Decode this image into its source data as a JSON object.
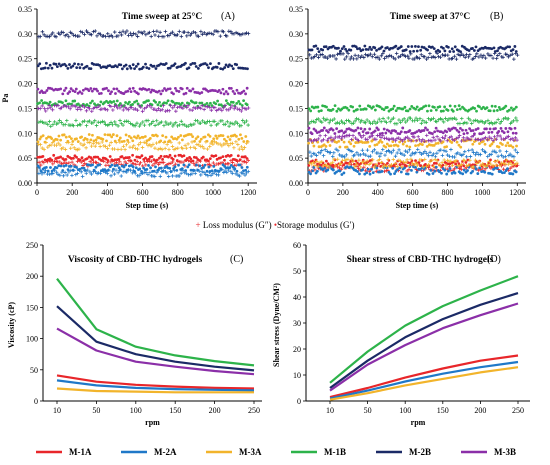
{
  "chart_data": [
    {
      "type": "scatter",
      "panel": "(A)",
      "title": "Time sweep at 25°C",
      "xlabel": "Step time (s)",
      "ylabel": "Pa",
      "xlim": [
        0,
        1250
      ],
      "ylim": [
        0,
        0.35
      ],
      "xticks": [
        0,
        200,
        400,
        600,
        800,
        1000,
        1200
      ],
      "yticks": [
        0,
        0.05,
        0.1,
        0.15,
        0.2,
        0.25,
        0.3,
        0.35
      ],
      "ytick_labels": [
        "0.00",
        "0.05",
        "0.10",
        "0.15",
        "0.20",
        "0.25",
        "0.30",
        "0.35"
      ],
      "grid": false,
      "series": [
        {
          "sample": "M-1A",
          "color": "#e8262a",
          "storage": 0.05,
          "loss": 0.04,
          "spread": 0.006
        },
        {
          "sample": "M-2A",
          "color": "#1f78c8",
          "storage": 0.03,
          "loss": 0.02,
          "spread": 0.007
        },
        {
          "sample": "M-3A",
          "color": "#f2b42b",
          "storage": 0.09,
          "loss": 0.075,
          "spread": 0.008
        },
        {
          "sample": "M-1B",
          "color": "#2db34a",
          "storage": 0.16,
          "loss": 0.12,
          "spread": 0.006
        },
        {
          "sample": "M-2B",
          "color": "#1b2a66",
          "storage": 0.235,
          "loss": 0.3,
          "spread": 0.006
        },
        {
          "sample": "M-3B",
          "color": "#8b2fa8",
          "storage": 0.185,
          "loss": 0.15,
          "spread": 0.006
        }
      ]
    },
    {
      "type": "scatter",
      "panel": "(B)",
      "title": "Time sweep at 37°C",
      "xlabel": "Step time (s)",
      "ylabel": "",
      "xlim": [
        0,
        1250
      ],
      "ylim": [
        0,
        0.35
      ],
      "xticks": [
        0,
        200,
        400,
        600,
        800,
        1000,
        1200
      ],
      "yticks": [
        0,
        0.05,
        0.1,
        0.15,
        0.2,
        0.25,
        0.3,
        0.35
      ],
      "ytick_labels": [
        "0.00",
        "0.05",
        "0.10",
        "0.15",
        "0.20",
        "0.25",
        "0.30",
        "0.35"
      ],
      "grid": false,
      "series": [
        {
          "sample": "M-1A",
          "color": "#e8262a",
          "storage": 0.04,
          "loss": 0.03,
          "spread": 0.007
        },
        {
          "sample": "M-2A",
          "color": "#1f78c8",
          "storage": 0.025,
          "loss": 0.06,
          "spread": 0.008
        },
        {
          "sample": "M-3A",
          "color": "#f2b42b",
          "storage": 0.08,
          "loss": 0.04,
          "spread": 0.008
        },
        {
          "sample": "M-1B",
          "color": "#2db34a",
          "storage": 0.15,
          "loss": 0.125,
          "spread": 0.006
        },
        {
          "sample": "M-2B",
          "color": "#1b2a66",
          "storage": 0.27,
          "loss": 0.255,
          "spread": 0.006
        },
        {
          "sample": "M-3B",
          "color": "#8b2fa8",
          "storage": 0.105,
          "loss": 0.09,
          "spread": 0.006
        }
      ]
    },
    {
      "type": "line",
      "panel": "(C)",
      "title": "Viscosity of CBD-THC hydrogels",
      "xlabel": "rpm",
      "ylabel": "Viscosity (cP)",
      "categories": [
        "10",
        "50",
        "100",
        "150",
        "200",
        "250"
      ],
      "ylim": [
        0,
        250
      ],
      "yticks": [
        0,
        50,
        100,
        150,
        200,
        250
      ],
      "grid": false,
      "series": [
        {
          "name": "M-1A",
          "color": "#e8262a",
          "values": [
            41,
            31,
            26,
            23,
            21,
            20
          ]
        },
        {
          "name": "M-2A",
          "color": "#1f78c8",
          "values": [
            33,
            25,
            21,
            19,
            18,
            17
          ]
        },
        {
          "name": "M-3A",
          "color": "#f2b42b",
          "values": [
            20,
            16,
            15,
            14,
            14,
            14
          ]
        },
        {
          "name": "M-1B",
          "color": "#2db34a",
          "values": [
            196,
            115,
            87,
            73,
            64,
            57
          ]
        },
        {
          "name": "M-2B",
          "color": "#1b2a66",
          "values": [
            152,
            95,
            75,
            63,
            55,
            49
          ]
        },
        {
          "name": "M-3B",
          "color": "#8b2fa8",
          "values": [
            116,
            81,
            63,
            55,
            48,
            43
          ]
        }
      ]
    },
    {
      "type": "line",
      "panel": "(D)",
      "title": "Shear stress of CBD-THC hydrogels",
      "xlabel": "rpm",
      "ylabel": "Shear stress (Dyne/CM²)",
      "categories": [
        "10",
        "50",
        "100",
        "150",
        "200",
        "250"
      ],
      "ylim": [
        0,
        60
      ],
      "yticks": [
        0,
        10,
        20,
        30,
        40,
        50,
        60
      ],
      "grid": false,
      "series": [
        {
          "name": "M-1A",
          "color": "#e8262a",
          "values": [
            1.5,
            5,
            9,
            12.5,
            15.5,
            17.5
          ]
        },
        {
          "name": "M-2A",
          "color": "#1f78c8",
          "values": [
            1,
            4,
            7.5,
            10.5,
            13,
            15
          ]
        },
        {
          "name": "M-3A",
          "color": "#f2b42b",
          "values": [
            0.5,
            3,
            6,
            8.5,
            11,
            13
          ]
        },
        {
          "name": "M-1B",
          "color": "#2db34a",
          "values": [
            7,
            19,
            29,
            36.5,
            42.5,
            48
          ]
        },
        {
          "name": "M-2B",
          "color": "#1b2a66",
          "values": [
            5,
            15.5,
            24.5,
            31.5,
            37,
            41.5
          ]
        },
        {
          "name": "M-3B",
          "color": "#8b2fa8",
          "values": [
            4,
            14,
            21.5,
            28,
            33,
            37.5
          ]
        }
      ]
    }
  ],
  "scatter_legend": {
    "loss_label": "Loss modulus (G″)",
    "storage_label": "Storage modulus (G′)",
    "loss_marker": "+",
    "storage_marker": "•",
    "color": "#e8262a"
  },
  "line_legend": [
    "M-1A",
    "M-2A",
    "M-3A",
    "M-1B",
    "M-2B",
    "M-3B"
  ]
}
